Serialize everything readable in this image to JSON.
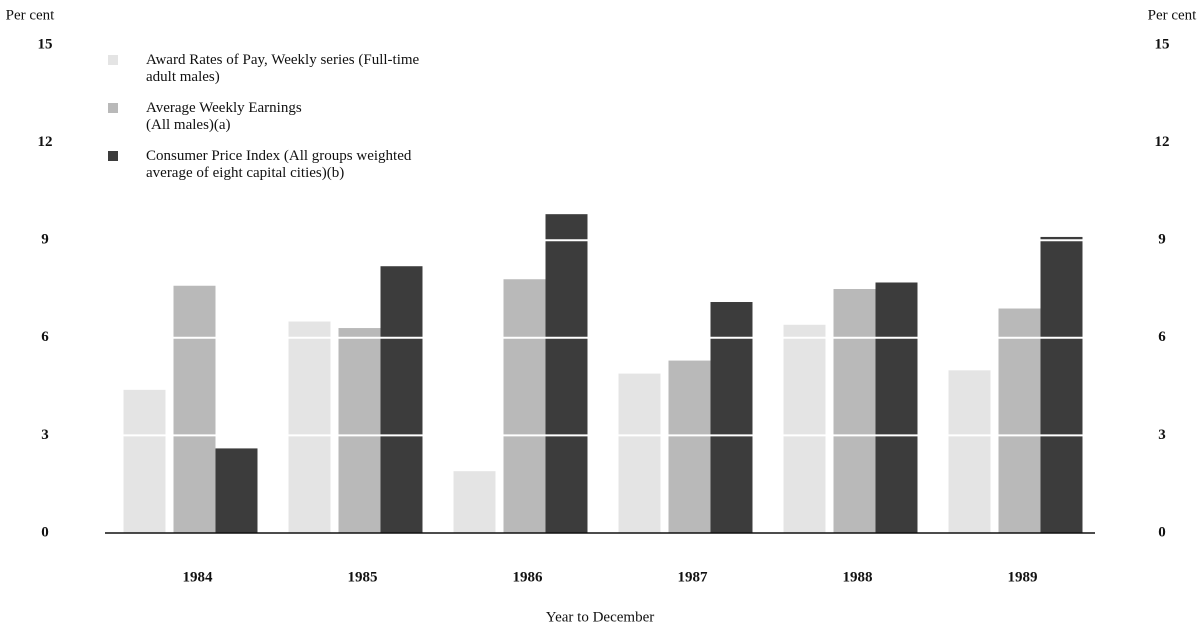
{
  "chart_data": {
    "type": "bar",
    "ylabel": "Per cent",
    "y2label": "Per cent",
    "xlabel": "Year to December",
    "categories": [
      "1984",
      "1985",
      "1986",
      "1987",
      "1988",
      "1989"
    ],
    "series": [
      {
        "name": "Award Rates of Pay, Weekly series (Full-time adult males)",
        "color": "#e4e4e4",
        "values": [
          4.4,
          6.5,
          1.9,
          4.9,
          6.4,
          5.0
        ]
      },
      {
        "name": "Average Weekly Earnings (All males)(a)",
        "color": "#b9b9b9",
        "values": [
          7.6,
          6.3,
          7.8,
          5.3,
          7.5,
          6.9
        ]
      },
      {
        "name": "Consumer Price Index (All groups weighted average of eight capital cities)(b)",
        "color": "#3c3c3c",
        "values": [
          2.6,
          8.2,
          9.8,
          7.1,
          7.7,
          9.1
        ]
      }
    ],
    "ylim": [
      0,
      15
    ],
    "yticks": [
      0,
      3,
      6,
      9,
      12,
      15
    ],
    "y2lim": [
      0,
      15
    ],
    "y2ticks": [
      0,
      3,
      6,
      9,
      12,
      15
    ],
    "grid": true
  }
}
